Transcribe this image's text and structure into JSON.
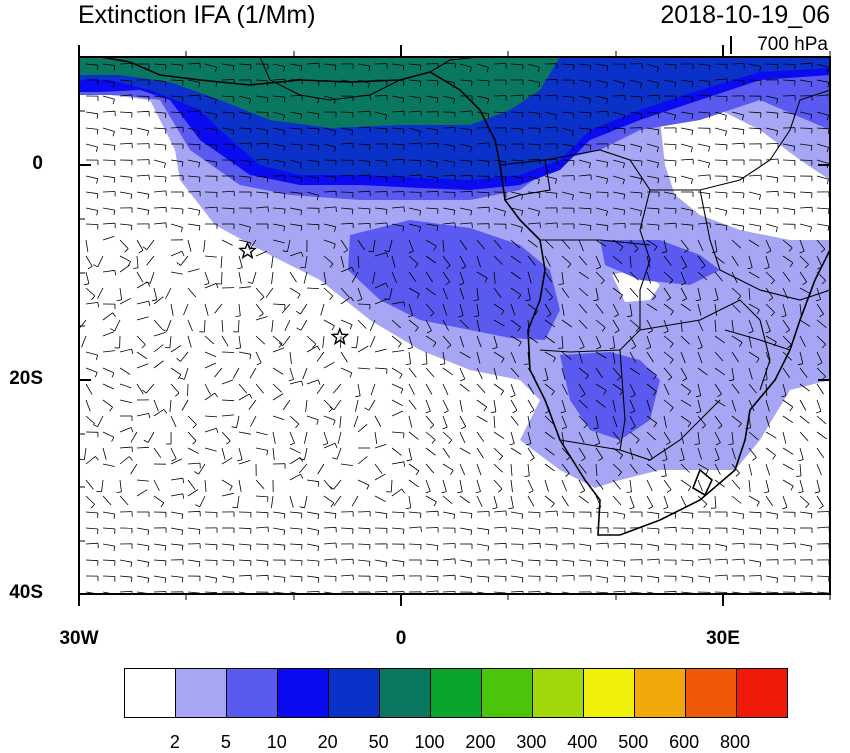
{
  "header": {
    "title": "Extinction IFA (1/Mm)",
    "datetime": "2018-10-19_06",
    "level": "700 hPa"
  },
  "axes": {
    "y_labels": [
      "0",
      "20S",
      "40S"
    ],
    "x_labels": [
      "30W",
      "0",
      "30E"
    ]
  },
  "colorbar": {
    "labels": [
      "2",
      "5",
      "10",
      "20",
      "50",
      "100",
      "200",
      "300",
      "400",
      "500",
      "600",
      "800"
    ],
    "colors": [
      "#ffffff",
      "#a6a6f5",
      "#5a5af0",
      "#0b0bf0",
      "#0a32c8",
      "#0a7860",
      "#0aa52a",
      "#4cc40a",
      "#a2d80a",
      "#f0f00a",
      "#f0a80a",
      "#f0580a",
      "#f01a0a"
    ]
  },
  "map": {
    "markers": [
      {
        "name": "star-marker",
        "lon": -14.3,
        "lat": -8.0
      },
      {
        "name": "star-marker",
        "lon": -5.7,
        "lat": -16.0
      }
    ]
  }
}
